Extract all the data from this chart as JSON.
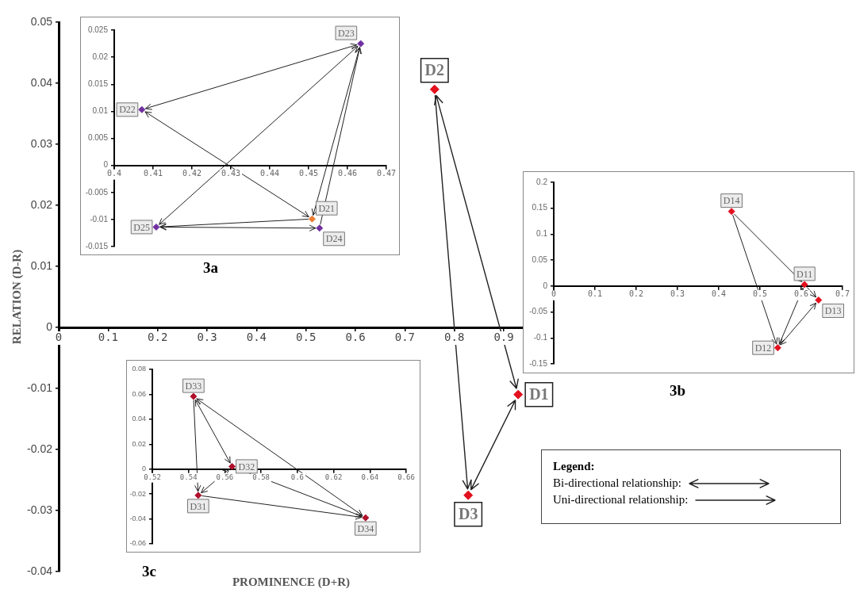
{
  "chart_data": [
    {
      "type": "scatter",
      "xlabel": "PROMINENCE (D+R)",
      "ylabel": "RELATION (D-R)",
      "marker": "diamond",
      "x": [
        0.929,
        0.76,
        0.828
      ],
      "values": [
        -0.011,
        0.039,
        -0.0275
      ],
      "colors": [
        "#e3101e",
        "#e3101e",
        "#e3101e"
      ],
      "xlim": [
        0,
        0.94
      ],
      "ylim": [
        -0.04,
        0.05
      ],
      "xticks": [
        0,
        0.1,
        0.2,
        0.3,
        0.4,
        0.5,
        0.6,
        0.7,
        0.8,
        0.9
      ],
      "yticks": [
        -0.04,
        -0.03,
        -0.02,
        -0.01,
        0,
        0.01,
        0.02,
        0.03,
        0.04,
        0.05
      ],
      "annotations": [
        {
          "text": "D1",
          "x": 0.929,
          "y": -0.011
        },
        {
          "text": "D2",
          "x": 0.76,
          "y": 0.039
        },
        {
          "text": "D3",
          "x": 0.828,
          "y": -0.0275
        },
        "Legend:",
        "Bi-directional relationship:",
        "Uni-directional relationship:"
      ]
    },
    {
      "type": "scatter",
      "title": "3a",
      "marker": "diamond",
      "x": [
        0.4509,
        0.4071,
        0.4634,
        0.4528,
        0.4108
      ],
      "values": [
        -0.0099,
        0.0103,
        0.0225,
        -0.0116,
        -0.0114
      ],
      "colors": [
        "#ed7d31",
        "#7030a0",
        "#7030a0",
        "#7030a0",
        "#7030a0"
      ],
      "xlim": [
        0.4,
        0.47
      ],
      "ylim": [
        -0.015,
        0.025
      ],
      "xticks": [
        0.4,
        0.41,
        0.42,
        0.43,
        0.44,
        0.45,
        0.46,
        0.47
      ],
      "yticks": [
        -0.015,
        -0.01,
        -0.005,
        0,
        0.005,
        0.01,
        0.015,
        0.02,
        0.025
      ],
      "annotations": [
        {
          "text": "D21",
          "x": 0.4509,
          "y": -0.0099
        },
        {
          "text": "D22",
          "x": 0.4071,
          "y": 0.0103
        },
        {
          "text": "D23",
          "x": 0.4634,
          "y": 0.0225
        },
        {
          "text": "D24",
          "x": 0.4528,
          "y": -0.0116
        },
        {
          "text": "D25",
          "x": 0.4108,
          "y": -0.0114
        }
      ]
    },
    {
      "type": "scatter",
      "title": "3b",
      "marker": "diamond",
      "x": [
        0.608,
        0.543,
        0.642,
        0.431
      ],
      "values": [
        0.003,
        -0.119,
        -0.027,
        0.144
      ],
      "colors": [
        "#e3101e",
        "#e3101e",
        "#e3101e",
        "#e3101e"
      ],
      "xlim": [
        0,
        0.7
      ],
      "ylim": [
        -0.15,
        0.2
      ],
      "xticks": [
        0,
        0.1,
        0.2,
        0.3,
        0.4,
        0.5,
        0.6,
        0.7
      ],
      "yticks": [
        -0.15,
        -0.1,
        -0.05,
        0,
        0.05,
        0.1,
        0.15,
        0.2
      ],
      "annotations": [
        {
          "text": "D11",
          "x": 0.608,
          "y": 0.003
        },
        {
          "text": "D12",
          "x": 0.543,
          "y": -0.119
        },
        {
          "text": "D13",
          "x": 0.642,
          "y": -0.027
        },
        {
          "text": "D14",
          "x": 0.431,
          "y": 0.144
        }
      ]
    },
    {
      "type": "scatter",
      "title": "3c",
      "marker": "diamond",
      "x": [
        0.5453,
        0.564,
        0.5427,
        0.6376
      ],
      "values": [
        -0.0211,
        0.0021,
        0.0583,
        -0.0391
      ],
      "colors": [
        "#b0102a",
        "#b0102a",
        "#b0102a",
        "#b0102a"
      ],
      "xlim": [
        0.52,
        0.66
      ],
      "ylim": [
        -0.06,
        0.08
      ],
      "xticks": [
        0.52,
        0.54,
        0.56,
        0.58,
        0.6,
        0.62,
        0.64,
        0.66
      ],
      "yticks": [
        -0.06,
        -0.04,
        -0.02,
        0,
        0.02,
        0.04,
        0.06,
        0.08
      ],
      "annotations": [
        {
          "text": "D31",
          "x": 0.5453,
          "y": -0.0211
        },
        {
          "text": "D32",
          "x": 0.564,
          "y": 0.0021
        },
        {
          "text": "D33",
          "x": 0.5427,
          "y": 0.0583
        },
        {
          "text": "D34",
          "x": 0.6376,
          "y": -0.0391
        }
      ]
    }
  ]
}
